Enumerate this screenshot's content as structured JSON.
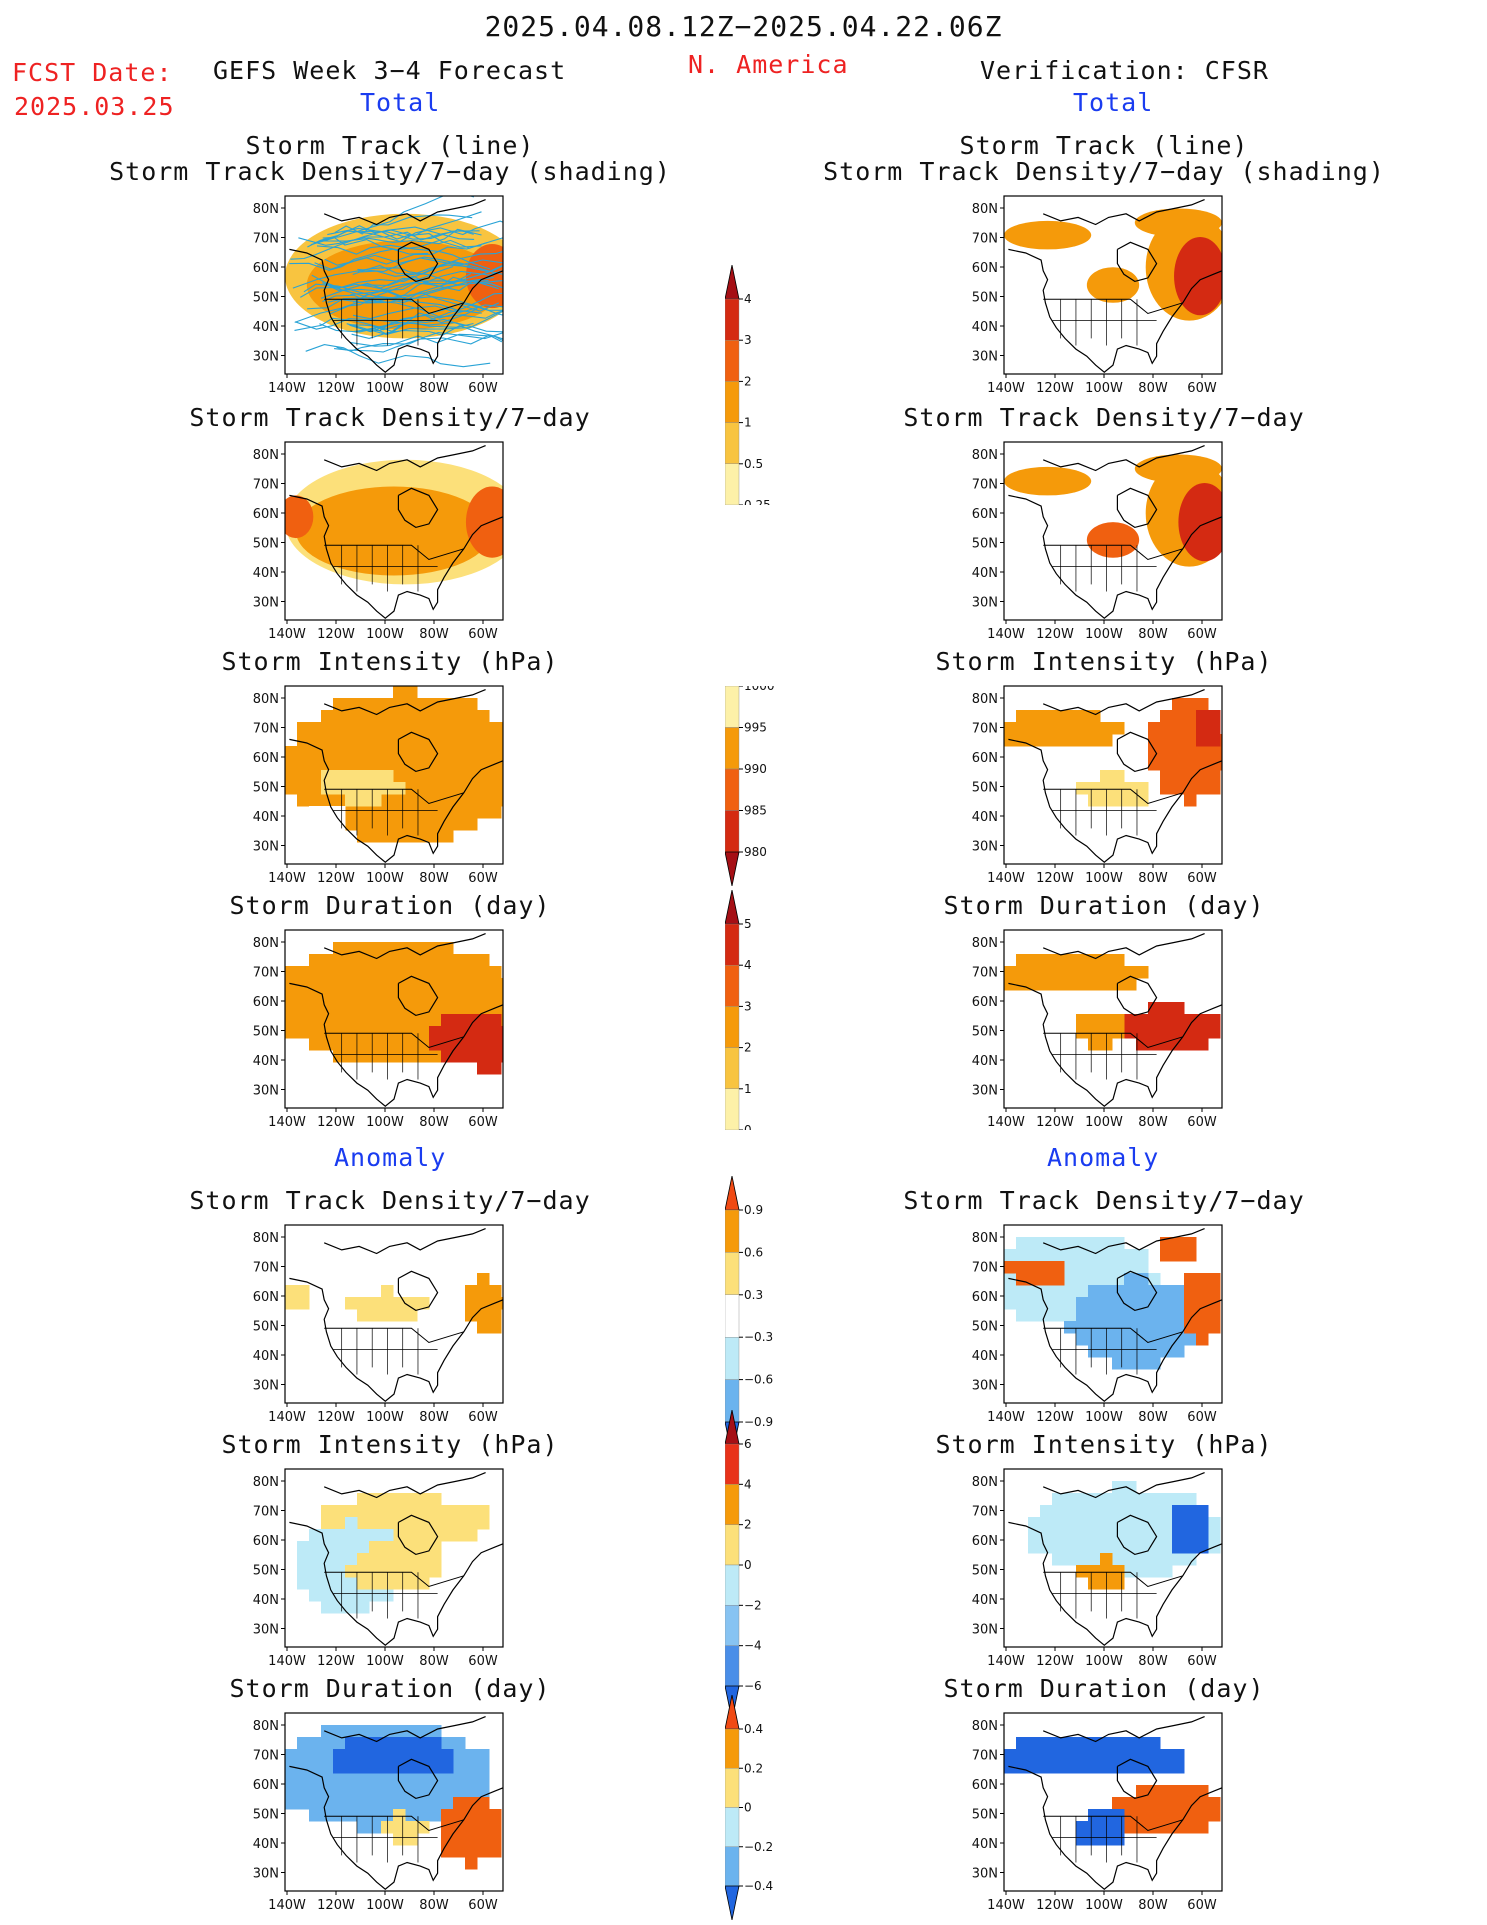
{
  "header": {
    "period": "2025.04.08.12Z−2025.04.22.06Z",
    "region": "N. America",
    "fcst_label": "FCST Date:",
    "fcst_date": "2025.03.25",
    "left_title": "GEFS Week 3−4 Forecast",
    "right_title": "Verification: CFSR",
    "total_label": "Total",
    "anomaly_label": "Anomaly"
  },
  "axes": {
    "lat_labels": [
      "80N",
      "70N",
      "60N",
      "50N",
      "40N",
      "30N"
    ],
    "lon_labels": [
      "140W",
      "120W",
      "100W",
      "80W",
      "60W"
    ]
  },
  "panel_titles": {
    "storm_track": [
      "Storm Track (line)",
      "Storm Track Density/7−day (shading)"
    ],
    "density": "Storm Track Density/7−day",
    "intensity": "Storm Intensity (hPa)",
    "duration": "Storm Duration (day)"
  },
  "colorbars": {
    "density_total": {
      "labels": [
        "4",
        "3",
        "2",
        "1",
        "0.5",
        "0.25"
      ],
      "colors": [
        "#a50f15",
        "#d42a12",
        "#f06010",
        "#f59a0a",
        "#f8c440",
        "#fdf1a8"
      ]
    },
    "intensity_total": {
      "labels": [
        "1000",
        "995",
        "990",
        "985",
        "980"
      ],
      "colors": [
        "#fdf1a8",
        "#f59a0a",
        "#f06010",
        "#d42a12",
        "#a50f15"
      ]
    },
    "duration_total": {
      "labels": [
        "5",
        "4",
        "3",
        "2",
        "1",
        "0"
      ],
      "colors": [
        "#a50f15",
        "#d42a12",
        "#f06010",
        "#f59a0a",
        "#f8c440",
        "#fdf1a8"
      ]
    },
    "density_anom": {
      "labels": [
        "0.9",
        "0.6",
        "0.3",
        "−0.3",
        "−0.6",
        "−0.9"
      ],
      "colors": [
        "#f04a14",
        "#f59a0a",
        "#fce07a",
        "#ffffff",
        "#bdeaf7",
        "#6bb3ee",
        "#2166e0"
      ]
    },
    "intensity_anom": {
      "labels": [
        "6",
        "4",
        "2",
        "0",
        "−2",
        "−4",
        "−6"
      ],
      "colors": [
        "#a50f15",
        "#e8321a",
        "#f59a0a",
        "#fce07a",
        "#bdeaf7",
        "#87c3f2",
        "#4a8ee8",
        "#2166e0"
      ]
    },
    "duration_anom": {
      "labels": [
        "0.4",
        "0.2",
        "0",
        "−0.2",
        "−0.4"
      ],
      "colors": [
        "#f04a14",
        "#f59a0a",
        "#fce07a",
        "#bdeaf7",
        "#6bb3ee",
        "#2166e0"
      ]
    }
  }
}
